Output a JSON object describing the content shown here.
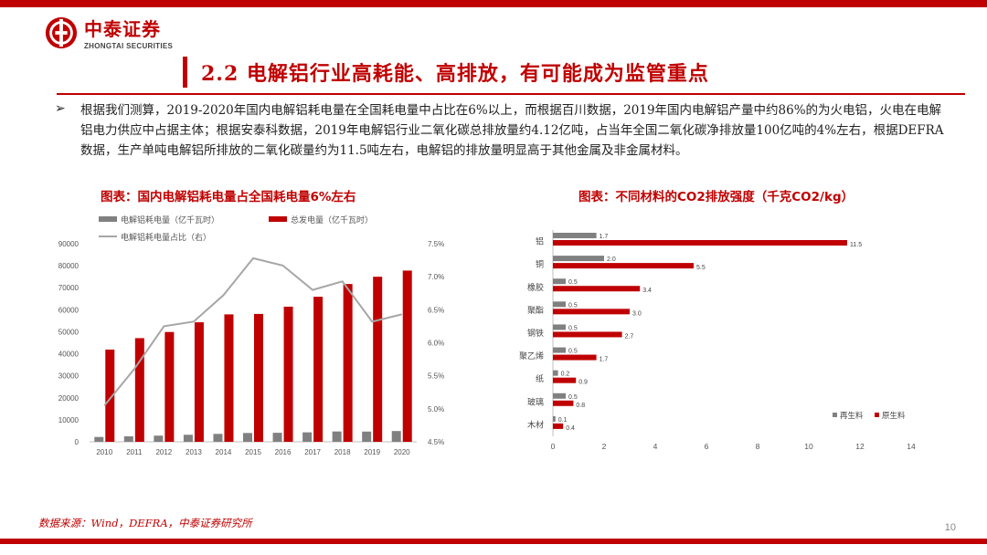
{
  "brand": {
    "name_cn": "中泰证券",
    "name_en": "ZHONGTAI SECURITIES",
    "color": "#c00000"
  },
  "title": "2.2 电解铝行业高耗能、高排放，有可能成为监管重点",
  "bullet": "根据我们测算，2019-2020年国内电解铝耗电量在全国耗电量中占比在6%以上，而根据百川数据，2019年国内电解铝产量中约86%的为火电铝，火电在电解铝电力供应中占据主体；根据安泰科数据，2019年电解铝行业二氧化碳总排放量约4.12亿吨，占当年全国二氧化碳净排放量100亿吨的4%左右，根据DEFRA数据，生产单吨电解铝所排放的二氧化碳量约为11.5吨左右，电解铝的排放量明显高于其他金属及非金属材料。",
  "chart_data": [
    {
      "type": "bar",
      "title": "图表：国内电解铝耗电量占全国耗电量6%左右",
      "categories": [
        "2010",
        "2011",
        "2012",
        "2013",
        "2014",
        "2015",
        "2016",
        "2017",
        "2018",
        "2019",
        "2020"
      ],
      "series": [
        {
          "name": "电解铝耗电量（亿千瓦时）",
          "type": "bar",
          "axis": "left",
          "color": "#808080",
          "values": [
            2200,
            2500,
            2800,
            3200,
            3600,
            4000,
            4100,
            4300,
            4700,
            4650,
            4900
          ]
        },
        {
          "name": "总发电量（亿千瓦时）",
          "type": "bar",
          "axis": "left",
          "color": "#c00000",
          "values": [
            41900,
            47100,
            49900,
            54300,
            57900,
            58100,
            61400,
            65900,
            71700,
            75000,
            77800
          ]
        },
        {
          "name": "电解铝耗电量占比（右）",
          "type": "line",
          "axis": "right",
          "color": "#a6a6a6",
          "values": [
            5.05,
            5.6,
            6.25,
            6.32,
            6.72,
            7.28,
            7.17,
            6.8,
            6.93,
            6.32,
            6.43
          ]
        }
      ],
      "yticks_left": [
        "0",
        "10000",
        "20000",
        "30000",
        "40000",
        "50000",
        "60000",
        "70000",
        "80000",
        "90000"
      ],
      "yticks_right": [
        "4.5%",
        "5.0%",
        "5.5%",
        "6.0%",
        "6.5%",
        "7.0%",
        "7.5%"
      ],
      "ylim_left": [
        0,
        90000
      ],
      "ylim_right": [
        4.5,
        7.5
      ],
      "legend": "top"
    },
    {
      "type": "bar",
      "title": "图表：不同材料的CO2排放强度（千克CO2/kg）",
      "orientation": "horizontal",
      "categories": [
        "铝",
        "铜",
        "橡胶",
        "聚酯",
        "钢铁",
        "聚乙烯",
        "纸",
        "玻璃",
        "木材"
      ],
      "series": [
        {
          "name": "再生料",
          "color": "#808080",
          "values": [
            1.7,
            2.0,
            0.5,
            0.5,
            0.5,
            0.5,
            0.2,
            0.5,
            0.1
          ]
        },
        {
          "name": "原生料",
          "color": "#c00000",
          "values": [
            11.5,
            5.5,
            3.4,
            3.0,
            2.7,
            1.7,
            0.9,
            0.8,
            0.4
          ]
        }
      ],
      "xticks": [
        "0",
        "2",
        "4",
        "6",
        "8",
        "10",
        "12",
        "14"
      ],
      "xlim": [
        0,
        14
      ],
      "legend": "bottom-right"
    }
  ],
  "source": "数据来源：Wind，DEFRA，中泰证券研究所",
  "page_number": "10"
}
